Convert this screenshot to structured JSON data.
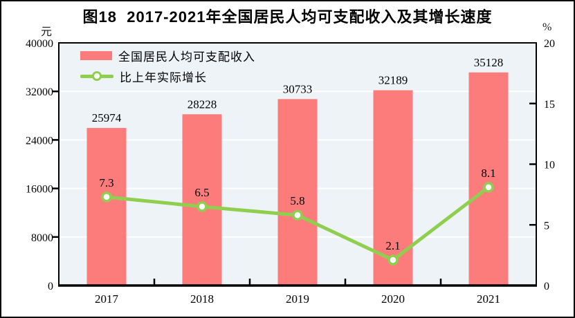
{
  "title": "图18  2017-2021年全国居民人均可支配收入及其增长速度",
  "left_axis_unit": "元",
  "right_axis_unit": "%",
  "legend": {
    "items": [
      {
        "label": "全国居民人均可支配收入",
        "marker": "bar"
      },
      {
        "label": "比上年实际增长",
        "marker": "line"
      }
    ],
    "position": "top-left-inside"
  },
  "colors": {
    "bar": "#FC7C7C",
    "line": "#8FCE4F",
    "marker_fill": "#FFFFFF",
    "plot_bg": "#EDF3F7",
    "gridline": "#FFFFFF",
    "axis": "#000000",
    "text": "#000000"
  },
  "chart_data": {
    "type": "bar+line",
    "title": "图18  2017-2021年全国居民人均可支配收入及其增长速度",
    "categories": [
      "2017",
      "2018",
      "2019",
      "2020",
      "2021"
    ],
    "series": [
      {
        "name": "全国居民人均可支配收入",
        "type": "bar",
        "axis": "left",
        "values": [
          25974,
          28228,
          30733,
          32189,
          35128
        ],
        "labels": [
          "25974",
          "28228",
          "30733",
          "32189",
          "35128"
        ]
      },
      {
        "name": "比上年实际增长",
        "type": "line",
        "axis": "right",
        "values": [
          7.3,
          6.5,
          5.8,
          2.1,
          8.1
        ],
        "labels": [
          "7.3",
          "6.5",
          "5.8",
          "2.1",
          "8.1"
        ]
      }
    ],
    "left_axis": {
      "unit": "元",
      "min": 0,
      "max": 40000,
      "tick_step": 8000,
      "ticks": [
        0,
        8000,
        16000,
        24000,
        32000,
        40000
      ]
    },
    "right_axis": {
      "unit": "%",
      "min": 0,
      "max": 20,
      "tick_step": 5,
      "ticks": [
        0,
        5,
        10,
        15,
        20
      ]
    },
    "grid": true,
    "legend_position": "top-left-inside"
  }
}
